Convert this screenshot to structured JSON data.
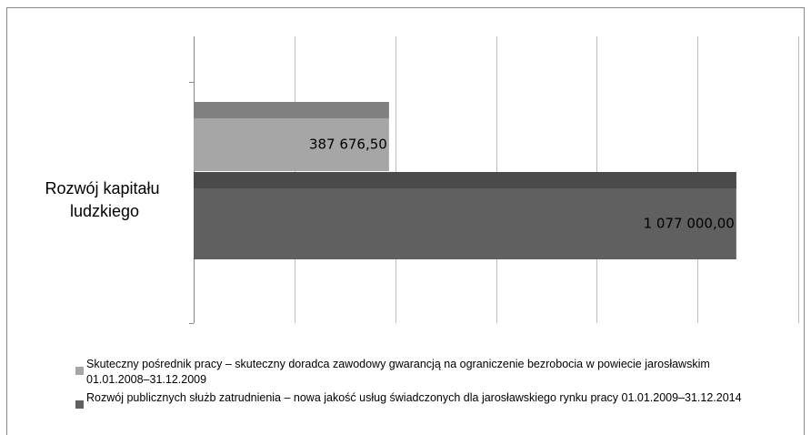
{
  "chart_data": {
    "type": "barh",
    "categories": [
      "Rozwój kapitału ludzkiego"
    ],
    "series": [
      {
        "name": "Skuteczny pośrednik pracy – skuteczny doradca zawodowy gwarancją na ograniczenie bezrobocia w powiecie jarosławskim 01.01.2008–31.12.2009",
        "color": "#a6a6a6",
        "values": [
          387676.5
        ],
        "value_labels": [
          "387 676,50"
        ]
      },
      {
        "name": "Rozwój publicznych służb zatrudnienia – nowa jakość usług świadczonych dla jarosławskiego rynku pracy 01.01.2009–31.12.2014",
        "color": "#606060",
        "values": [
          1077000
        ],
        "value_labels": [
          "1 077 000,00"
        ]
      }
    ],
    "xlim": [
      0,
      1200000
    ],
    "xticks": [
      0,
      200000,
      400000,
      600000,
      800000,
      1000000,
      1200000
    ],
    "grid": true,
    "legend": "bottom"
  }
}
